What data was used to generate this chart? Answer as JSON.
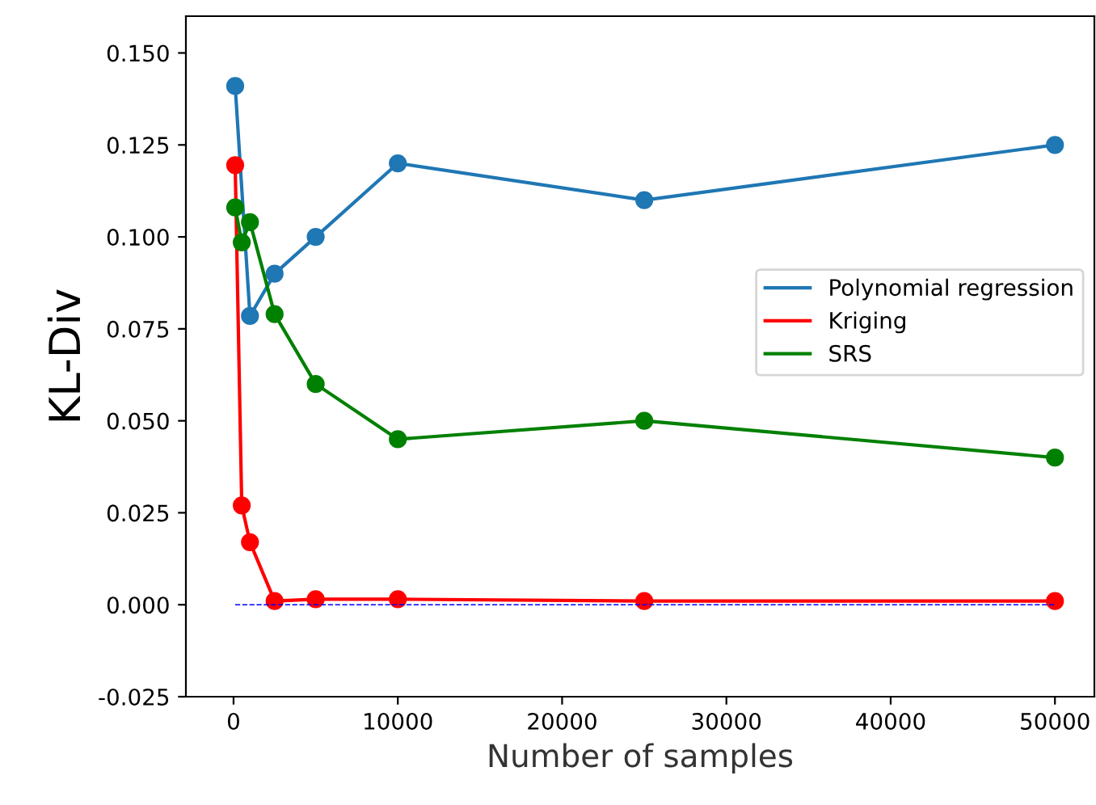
{
  "chart_data": {
    "type": "line",
    "xlabel": "Number of samples",
    "ylabel": "KL-Div",
    "xlim": [
      -2900,
      52400
    ],
    "xticks": [
      0,
      10000,
      20000,
      30000,
      40000,
      50000
    ],
    "ylim": [
      -0.025,
      0.16
    ],
    "yticks": [
      -0.025,
      {
        "value": 0,
        "label": "0.000"
      },
      0.025,
      {
        "value": 0.05,
        "label": "0.050"
      },
      0.075,
      {
        "value": 0.1,
        "label": "0.100"
      },
      0.125,
      {
        "value": 0.15,
        "label": "0.150"
      }
    ],
    "marker": "circle",
    "grid": false,
    "legend": "right",
    "series": [
      {
        "name": "Polynomial regression",
        "color": "#1f77b4",
        "x": [
          100,
          1000,
          2500,
          5000,
          10000,
          25000,
          50000
        ],
        "values": [
          0.141,
          0.0785,
          0.09,
          0.1,
          0.12,
          0.11,
          0.125
        ]
      },
      {
        "name": "Kriging",
        "color": "#ff0000",
        "x": [
          100,
          500,
          1000,
          2500,
          5000,
          10000,
          25000,
          50000
        ],
        "values": [
          0.1195,
          0.027,
          0.017,
          0.001,
          0.0015,
          0.0015,
          0.001,
          0.001
        ]
      },
      {
        "name": "SRS",
        "color": "#008000",
        "x": [
          100,
          500,
          1000,
          2500,
          5000,
          10000,
          25000,
          50000
        ],
        "values": [
          0.108,
          0.0985,
          0.104,
          0.079,
          0.06,
          0.045,
          0.05,
          0.04
        ]
      }
    ],
    "ref_lines": [
      {
        "axis": "y",
        "value": 0,
        "color": "#0000ff",
        "line_style": "dashed"
      }
    ]
  }
}
